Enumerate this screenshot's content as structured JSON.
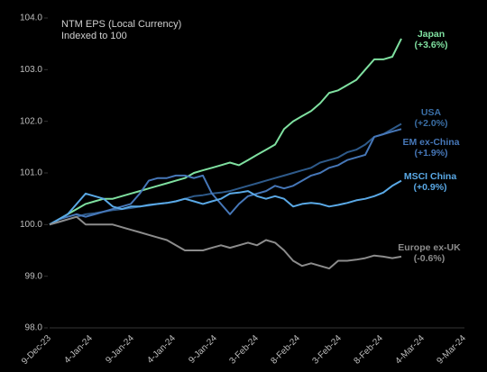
{
  "chart_data": {
    "type": "line",
    "title": "NTM EPS (Local Currency)",
    "subtitle": "Indexed to 100",
    "x_tick_labels": [
      "9-Dec-23",
      "4-Jan-24",
      "9-Jan-24",
      "4-Jan-24",
      "9-Jan-24",
      "3-Feb-24",
      "8-Feb-24",
      "3-Feb-24",
      "8-Feb-24",
      "4-Mar-24",
      "9-Mar-24"
    ],
    "ylim": [
      98,
      104
    ],
    "yticks": [
      {
        "value": 98,
        "label": "98.0"
      },
      {
        "value": 99,
        "label": "99.0"
      },
      {
        "value": 100,
        "label": "100.0"
      },
      {
        "value": 101,
        "label": "101.0"
      },
      {
        "value": 102,
        "label": "102.0"
      },
      {
        "value": 103,
        "label": "103.0"
      },
      {
        "value": 104,
        "label": "104.0"
      }
    ],
    "grid": false,
    "series": [
      {
        "name": "Japan",
        "end_label": "(+3.6%)",
        "color": "#7fe0a0",
        "values": [
          100.0,
          100.1,
          100.2,
          100.3,
          100.4,
          100.45,
          100.5,
          100.5,
          100.55,
          100.6,
          100.65,
          100.7,
          100.75,
          100.8,
          100.85,
          100.9,
          101.0,
          101.05,
          101.1,
          101.15,
          101.2,
          101.15,
          101.25,
          101.35,
          101.45,
          101.55,
          101.85,
          102.0,
          102.1,
          102.2,
          102.35,
          102.55,
          102.6,
          102.7,
          102.8,
          103.0,
          103.2,
          103.2,
          103.25,
          103.6
        ]
      },
      {
        "name": "USA",
        "end_label": "(+2.0%)",
        "color": "#2e5a8a",
        "values": [
          100.0,
          100.05,
          100.1,
          100.15,
          100.2,
          100.22,
          100.25,
          100.28,
          100.3,
          100.32,
          100.35,
          100.37,
          100.4,
          100.42,
          100.45,
          100.5,
          100.55,
          100.57,
          100.6,
          100.62,
          100.65,
          100.7,
          100.75,
          100.8,
          100.85,
          100.9,
          100.95,
          101.0,
          101.05,
          101.1,
          101.2,
          101.25,
          101.3,
          101.4,
          101.45,
          101.55,
          101.7,
          101.75,
          101.85,
          101.95
        ]
      },
      {
        "name": "EM ex-China",
        "end_label": "(+1.9%)",
        "color": "#4677b8",
        "values": [
          100.0,
          100.1,
          100.15,
          100.2,
          100.15,
          100.2,
          100.25,
          100.3,
          100.35,
          100.4,
          100.6,
          100.85,
          100.9,
          100.9,
          100.95,
          100.95,
          100.9,
          100.95,
          100.6,
          100.4,
          100.2,
          100.4,
          100.55,
          100.6,
          100.65,
          100.75,
          100.7,
          100.75,
          100.85,
          100.95,
          101.0,
          101.1,
          101.15,
          101.25,
          101.3,
          101.35,
          101.7,
          101.75,
          101.8,
          101.85
        ]
      },
      {
        "name": "MSCI China",
        "end_label": "(+0.9%)",
        "color": "#5aa9e6",
        "values": [
          100.0,
          100.1,
          100.2,
          100.4,
          100.6,
          100.55,
          100.5,
          100.35,
          100.3,
          100.35,
          100.35,
          100.38,
          100.4,
          100.42,
          100.45,
          100.5,
          100.45,
          100.4,
          100.45,
          100.5,
          100.6,
          100.62,
          100.65,
          100.55,
          100.5,
          100.55,
          100.5,
          100.35,
          100.4,
          100.42,
          100.4,
          100.35,
          100.38,
          100.42,
          100.47,
          100.5,
          100.55,
          100.62,
          100.75,
          100.85
        ]
      },
      {
        "name": "Europe ex-UK",
        "end_label": "(-0.6%)",
        "color": "#8c8c8c",
        "values": [
          100.0,
          100.05,
          100.1,
          100.15,
          100.0,
          100.0,
          100.0,
          100.0,
          99.95,
          99.9,
          99.85,
          99.8,
          99.75,
          99.7,
          99.6,
          99.5,
          99.5,
          99.5,
          99.55,
          99.6,
          99.55,
          99.6,
          99.65,
          99.6,
          99.7,
          99.65,
          99.5,
          99.3,
          99.2,
          99.25,
          99.2,
          99.15,
          99.3,
          99.3,
          99.32,
          99.35,
          99.4,
          99.38,
          99.35,
          99.38
        ]
      }
    ]
  }
}
